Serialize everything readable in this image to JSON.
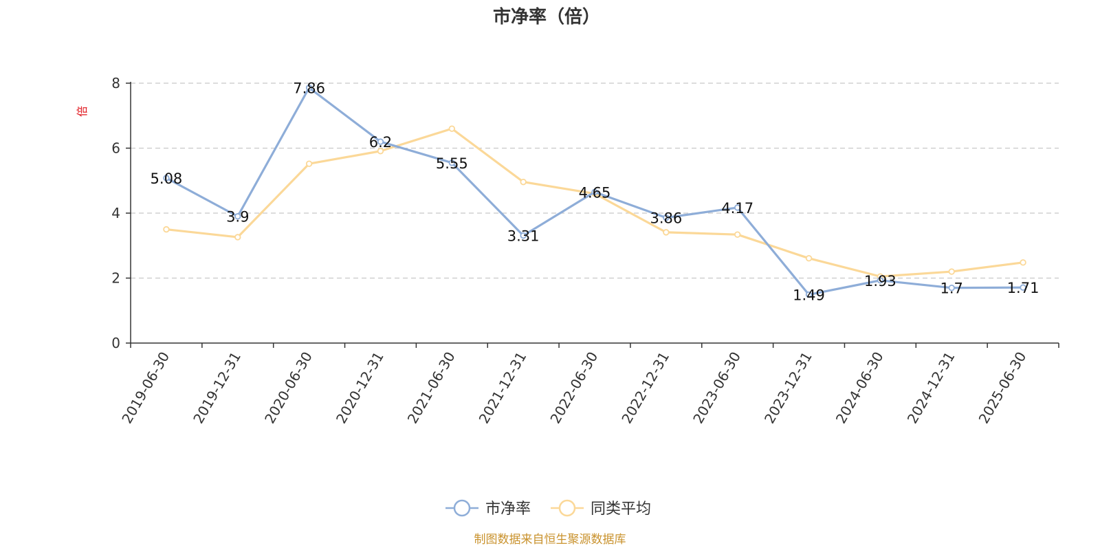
{
  "chart_data": {
    "type": "line",
    "title": "市净率（倍）",
    "ylabel": "倍",
    "ylim": [
      0,
      8
    ],
    "yticks": [
      0,
      2,
      4,
      6,
      8
    ],
    "grid": true,
    "legend_position": "bottom",
    "categories": [
      "2019-06-30",
      "2019-12-31",
      "2020-06-30",
      "2020-12-31",
      "2021-06-30",
      "2021-12-31",
      "2022-06-30",
      "2022-12-31",
      "2023-06-30",
      "2023-12-31",
      "2024-06-30",
      "2024-12-31",
      "2025-06-30"
    ],
    "series": [
      {
        "name": "市净率",
        "color": "#8eadd8",
        "values": [
          5.08,
          3.9,
          7.86,
          6.2,
          5.55,
          3.31,
          4.65,
          3.86,
          4.17,
          1.49,
          1.93,
          1.7,
          1.71
        ],
        "labels": [
          "5.08",
          "3.9",
          "7.86",
          "6.2",
          "5.55",
          "3.31",
          "4.65",
          "3.86",
          "4.17",
          "1.49",
          "1.93",
          "1.7",
          "1.71"
        ]
      },
      {
        "name": "同类平均",
        "color": "#fbd898",
        "values": [
          3.5,
          3.26,
          5.52,
          5.91,
          6.6,
          4.96,
          4.6,
          3.41,
          3.34,
          2.61,
          2.05,
          2.2,
          2.48
        ]
      }
    ]
  },
  "source_note": "制图数据来自恒生聚源数据库"
}
